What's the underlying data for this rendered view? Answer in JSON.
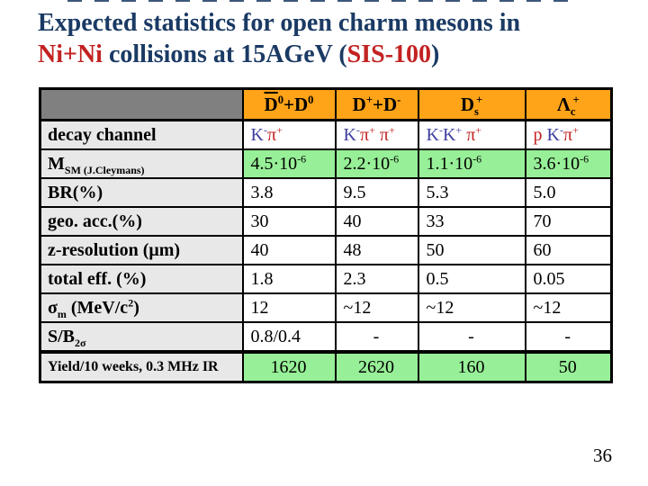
{
  "page": {
    "number": "36"
  },
  "colors": {
    "title_navy": "#1a3a64",
    "accent_red": "#c32222",
    "header_orange": "#ffa318",
    "corner_gray": "#808080",
    "label_gray": "#e8e8e8",
    "cell_green": "#97ef97",
    "particle_blue": "#3e3ea0",
    "particle_red": "#a02424"
  },
  "title": {
    "lines": [
      [
        {
          "t": "Expected statistics for open charm mesons in",
          "c": "navy"
        }
      ],
      [
        {
          "t": "Ni+Ni",
          "c": "red"
        },
        {
          "t": " collisions at 15AGeV (",
          "c": "navy"
        },
        {
          "t": "SIS-100",
          "c": "red"
        },
        {
          "t": ")",
          "c": "navy"
        }
      ]
    ]
  },
  "table": {
    "corner_label": "",
    "columns": [
      {
        "name": "D0bar-plus-D0",
        "segs": [
          {
            "t": "D",
            "bar": true
          },
          {
            "t": "0",
            "p": "sup"
          },
          {
            "t": "+"
          },
          {
            "t": "D"
          },
          {
            "t": "0",
            "p": "sup"
          }
        ]
      },
      {
        "name": "Dplus-plus-Dminus",
        "segs": [
          {
            "t": "D"
          },
          {
            "t": "+",
            "p": "sup"
          },
          {
            "t": "+"
          },
          {
            "t": "D"
          },
          {
            "t": "-",
            "p": "sup"
          }
        ]
      },
      {
        "name": "Ds-plus",
        "segs": [
          {
            "t": "D"
          },
          {
            "t": "s",
            "p": "sub"
          },
          {
            "t": "+",
            "p": "sup"
          }
        ]
      },
      {
        "name": "Lambda-c-plus",
        "segs": [
          {
            "t": "Λ"
          },
          {
            "t": "c",
            "p": "sub"
          },
          {
            "t": "+",
            "p": "sup"
          }
        ]
      }
    ],
    "rows": [
      {
        "name": "decay-channel",
        "label": [
          {
            "t": "decay channel"
          }
        ],
        "bg": "white",
        "cells": [
          {
            "segs": [
              {
                "t": "K",
                "c": "blue"
              },
              {
                "t": "-",
                "p": "sup",
                "c": "blue"
              },
              {
                "t": "π",
                "c": "red"
              },
              {
                "t": "+",
                "p": "sup",
                "c": "red"
              }
            ]
          },
          {
            "segs": [
              {
                "t": "K",
                "c": "blue"
              },
              {
                "t": "-",
                "p": "sup",
                "c": "blue"
              },
              {
                "t": "π",
                "c": "red"
              },
              {
                "t": "+",
                "p": "sup",
                "c": "red"
              },
              {
                "t": " π",
                "c": "red"
              },
              {
                "t": "+",
                "p": "sup",
                "c": "red"
              }
            ]
          },
          {
            "segs": [
              {
                "t": "K",
                "c": "blue"
              },
              {
                "t": "-",
                "p": "sup",
                "c": "blue"
              },
              {
                "t": "K",
                "c": "blue"
              },
              {
                "t": "+",
                "p": "sup",
                "c": "blue"
              },
              {
                "t": " π",
                "c": "red"
              },
              {
                "t": "+",
                "p": "sup",
                "c": "red"
              }
            ]
          },
          {
            "segs": [
              {
                "t": "p ",
                "c": "red"
              },
              {
                "t": "K",
                "c": "blue"
              },
              {
                "t": "-",
                "p": "sup",
                "c": "blue"
              },
              {
                "t": "π",
                "c": "red"
              },
              {
                "t": "+",
                "p": "sup",
                "c": "red"
              }
            ]
          }
        ]
      },
      {
        "name": "multiplicity-sm",
        "label": [
          {
            "t": "M"
          },
          {
            "t": "SM (J.Cleymans)",
            "p": "sub"
          }
        ],
        "bg": "green",
        "cells": [
          {
            "segs": [
              {
                "t": "4.5·10"
              },
              {
                "t": "-6",
                "p": "sup"
              }
            ]
          },
          {
            "segs": [
              {
                "t": "2.2·10"
              },
              {
                "t": "-6",
                "p": "sup"
              }
            ]
          },
          {
            "segs": [
              {
                "t": "1.1·10"
              },
              {
                "t": "-6",
                "p": "sup"
              }
            ]
          },
          {
            "segs": [
              {
                "t": "3.6·10"
              },
              {
                "t": "-6",
                "p": "sup"
              }
            ]
          }
        ]
      },
      {
        "name": "branching-ratio",
        "label": [
          {
            "t": "BR(%)"
          }
        ],
        "bg": "white",
        "cells": [
          {
            "segs": [
              {
                "t": "3.8"
              }
            ]
          },
          {
            "segs": [
              {
                "t": "9.5"
              }
            ]
          },
          {
            "segs": [
              {
                "t": "5.3"
              }
            ]
          },
          {
            "segs": [
              {
                "t": "5.0"
              }
            ]
          }
        ]
      },
      {
        "name": "geo-acceptance",
        "label": [
          {
            "t": "geo. acc.(%)"
          }
        ],
        "bg": "white",
        "cells": [
          {
            "segs": [
              {
                "t": "30"
              }
            ]
          },
          {
            "segs": [
              {
                "t": "40"
              }
            ]
          },
          {
            "segs": [
              {
                "t": "33"
              }
            ]
          },
          {
            "segs": [
              {
                "t": "70"
              }
            ]
          }
        ]
      },
      {
        "name": "z-resolution",
        "label": [
          {
            "t": "z-resolution ("
          },
          {
            "t": "μ",
            "c": null
          },
          {
            "t": "m)"
          }
        ],
        "bg": "white",
        "cells": [
          {
            "segs": [
              {
                "t": "40"
              }
            ]
          },
          {
            "segs": [
              {
                "t": "48"
              }
            ]
          },
          {
            "segs": [
              {
                "t": "50"
              }
            ]
          },
          {
            "segs": [
              {
                "t": "60"
              }
            ]
          }
        ]
      },
      {
        "name": "total-efficiency",
        "label": [
          {
            "t": "total eff. (%)"
          }
        ],
        "bg": "white",
        "cells": [
          {
            "segs": [
              {
                "t": "1.8"
              }
            ]
          },
          {
            "segs": [
              {
                "t": "2.3"
              }
            ]
          },
          {
            "segs": [
              {
                "t": "0.5"
              }
            ]
          },
          {
            "segs": [
              {
                "t": "0.05"
              }
            ]
          }
        ]
      },
      {
        "name": "sigma-m",
        "label": [
          {
            "t": "σ"
          },
          {
            "t": "m",
            "p": "sub"
          },
          {
            "t": " (MeV/c"
          },
          {
            "t": "2",
            "p": "sup"
          },
          {
            "t": ")"
          }
        ],
        "bg": "white",
        "cells": [
          {
            "segs": [
              {
                "t": "12"
              }
            ]
          },
          {
            "segs": [
              {
                "t": "~12"
              }
            ]
          },
          {
            "segs": [
              {
                "t": "~12"
              }
            ]
          },
          {
            "segs": [
              {
                "t": "~12"
              }
            ]
          }
        ]
      },
      {
        "name": "signal-to-background",
        "label": [
          {
            "t": "S/B"
          },
          {
            "t": "2σ",
            "p": "sub"
          }
        ],
        "bg": "white",
        "cells": [
          {
            "segs": [
              {
                "t": "0.8/0.4"
              }
            ]
          },
          {
            "segs": [
              {
                "t": "-"
              }
            ],
            "align": "center"
          },
          {
            "segs": [
              {
                "t": "-"
              }
            ],
            "align": "center"
          },
          {
            "segs": [
              {
                "t": "-"
              }
            ],
            "align": "center"
          }
        ]
      },
      {
        "name": "yield",
        "label": [
          {
            "t": "Yield/10 weeks, 0.3 MHz IR"
          }
        ],
        "label_small": true,
        "bg": "green",
        "align": "center",
        "cells": [
          {
            "segs": [
              {
                "t": "1620"
              }
            ]
          },
          {
            "segs": [
              {
                "t": "2620"
              }
            ]
          },
          {
            "segs": [
              {
                "t": "160"
              }
            ]
          },
          {
            "segs": [
              {
                "t": "50"
              }
            ]
          }
        ]
      }
    ]
  }
}
